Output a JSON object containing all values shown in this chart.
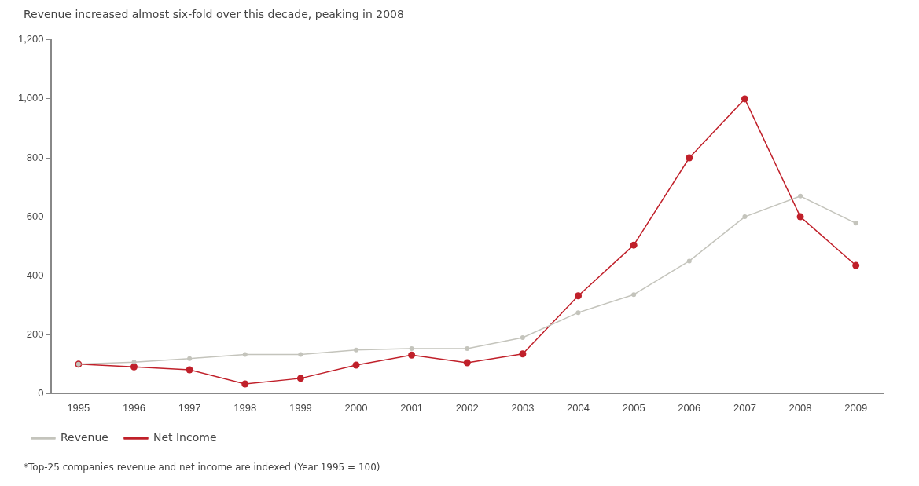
{
  "chart_data": {
    "type": "line",
    "title": "Revenue increased almost six-fold over this decade, peaking in 2008",
    "categories": [
      "1995",
      "1996",
      "1997",
      "1998",
      "1999",
      "2000",
      "2001",
      "2002",
      "2003",
      "2004",
      "2005",
      "2006",
      "2007",
      "2008",
      "2009"
    ],
    "series": [
      {
        "name": "Revenue",
        "color": "#c4c4bc",
        "values": [
          100,
          107,
          119,
          133,
          133,
          148,
          153,
          153,
          190,
          275,
          336,
          450,
          600,
          670,
          578
        ]
      },
      {
        "name": "Net Income",
        "color": "#c0202a",
        "values": [
          100,
          91,
          81,
          33,
          52,
          97,
          131,
          105,
          135,
          332,
          504,
          800,
          1000,
          600,
          435
        ]
      }
    ],
    "ylim": [
      0,
      1200
    ],
    "yticks": [
      0,
      200,
      400,
      600,
      800,
      {
        "value": 1000,
        "label": "1,000"
      },
      {
        "value": 1200,
        "label": "1,200"
      }
    ],
    "grid": false,
    "legend": "bottom left",
    "marker": "circle",
    "line_style": "solid",
    "annotations": [
      "*Top-25 companies revenue and net income are indexed (Year 1995 = 100)"
    ]
  }
}
